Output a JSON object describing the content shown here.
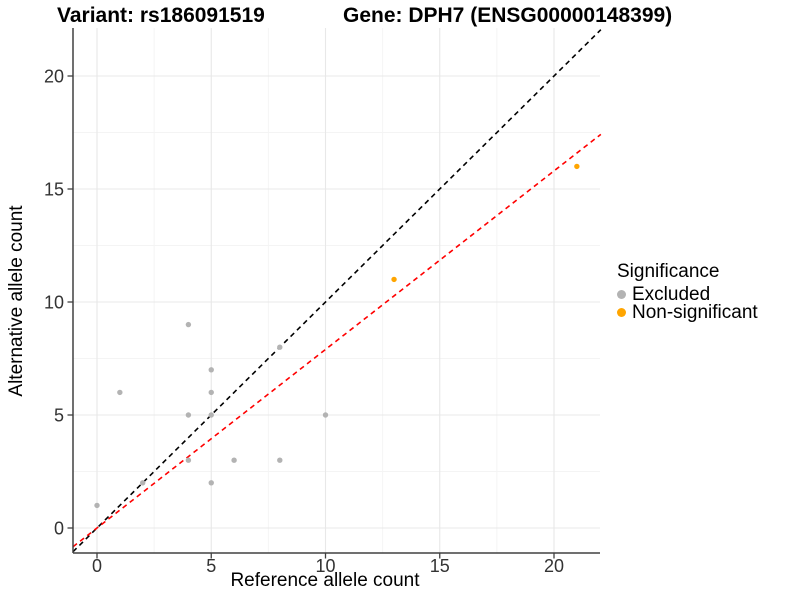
{
  "title": {
    "variant": "Variant: rs186091519",
    "gene": "Gene: DPH7 (ENSG00000148399)"
  },
  "axes": {
    "x": {
      "label": "Reference allele count",
      "ticks": [
        0,
        5,
        10,
        15,
        20
      ],
      "minor_ticks": [
        2.5,
        7.5,
        12.5,
        17.5
      ],
      "range": [
        -1.05,
        22.05
      ]
    },
    "y": {
      "label": "Alternative allele count",
      "ticks": [
        0,
        5,
        10,
        15,
        20
      ],
      "minor_ticks": [
        2.5,
        7.5,
        12.5,
        17.5
      ],
      "range": [
        -1.05,
        22.05
      ]
    }
  },
  "legend": {
    "title": "Significance",
    "items": [
      {
        "label": "Excluded",
        "color": "#b3b3b3"
      },
      {
        "label": "Non-significant",
        "color": "#ffa500"
      }
    ]
  },
  "chart_data": {
    "type": "scatter",
    "title": "Variant: rs186091519 — Gene: DPH7 (ENSG00000148399)",
    "xlabel": "Reference allele count",
    "ylabel": "Alternative allele count",
    "xlim": [
      -1.05,
      22.05
    ],
    "ylim": [
      -1.05,
      22.05
    ],
    "grid": true,
    "legend_position": "right",
    "legend_title": "Significance",
    "series": [
      {
        "name": "Excluded",
        "color": "#b3b3b3",
        "points": [
          [
            0,
            1
          ],
          [
            1,
            6
          ],
          [
            2,
            2
          ],
          [
            4,
            3
          ],
          [
            4,
            5
          ],
          [
            4,
            9
          ],
          [
            5,
            2
          ],
          [
            5,
            5
          ],
          [
            5,
            6
          ],
          [
            5,
            7
          ],
          [
            6,
            3
          ],
          [
            8,
            3
          ],
          [
            8,
            8
          ],
          [
            10,
            5
          ]
        ]
      },
      {
        "name": "Non-significant",
        "color": "#ffa500",
        "points": [
          [
            13,
            11
          ],
          [
            21,
            16
          ]
        ]
      }
    ],
    "lines": [
      {
        "name": "identity",
        "color": "#000000",
        "style": "dashed",
        "slope": 1,
        "intercept": 0
      },
      {
        "name": "fit",
        "color": "#ff0000",
        "style": "dashed",
        "slope": 0.79,
        "intercept": 0
      }
    ],
    "style": {
      "major_grid_color": "#e8e8e8",
      "minor_grid_color": "#f4f4f4",
      "axis_line_color": "#404040",
      "tick_label_color": "#333333",
      "point_radius": 2.7
    }
  }
}
